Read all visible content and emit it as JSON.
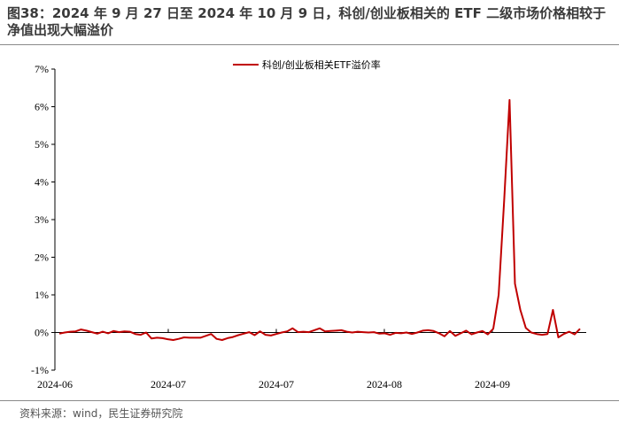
{
  "title": "图38：2024 年 9 月 27 日至 2024 年 10 月 9 日，科创/创业板相关的 ETF 二级市场价格相较于净值出现大幅溢价",
  "source": "资料来源：wind，民生证券研究院",
  "chart_data": {
    "type": "line",
    "title": "",
    "xlabel": "",
    "ylabel": "",
    "ylim": [
      -1,
      7
    ],
    "y_ticks": [
      -1,
      0,
      1,
      2,
      3,
      4,
      5,
      6,
      7
    ],
    "y_tick_labels": [
      "-1%",
      "0%",
      "1%",
      "2%",
      "3%",
      "4%",
      "5%",
      "6%",
      "7%"
    ],
    "x_tick_labels": [
      "2024-06",
      "2024-07",
      "2024-07",
      "2024-08",
      "2024-09"
    ],
    "legend_position": "top-center",
    "grid": false,
    "series": [
      {
        "name": "科创/创业板相关ETF溢价率",
        "color": "#c00000",
        "values": [
          -0.03,
          0.0,
          0.02,
          0.03,
          0.08,
          0.05,
          0.01,
          -0.03,
          0.02,
          -0.02,
          0.04,
          0.01,
          0.03,
          0.02,
          -0.04,
          -0.06,
          0.0,
          -0.16,
          -0.14,
          -0.15,
          -0.18,
          -0.2,
          -0.17,
          -0.13,
          -0.14,
          -0.14,
          -0.14,
          -0.09,
          -0.04,
          -0.17,
          -0.2,
          -0.15,
          -0.12,
          -0.07,
          -0.03,
          0.01,
          -0.07,
          0.03,
          -0.06,
          -0.08,
          -0.04,
          0.0,
          0.03,
          0.11,
          0.01,
          0.02,
          0.01,
          0.06,
          0.11,
          0.03,
          0.04,
          0.05,
          0.06,
          0.02,
          0.0,
          0.02,
          0.01,
          0.0,
          0.01,
          -0.03,
          -0.02,
          -0.06,
          -0.01,
          -0.02,
          0.0,
          -0.04,
          0.0,
          0.05,
          0.06,
          0.04,
          -0.02,
          -0.1,
          0.04,
          -0.09,
          -0.02,
          0.05,
          -0.05,
          0.0,
          0.04,
          -0.05,
          0.1,
          1.0,
          3.5,
          6.18,
          1.3,
          0.6,
          0.12,
          0.0,
          -0.04,
          -0.06,
          -0.04,
          0.6,
          -0.13,
          -0.04,
          0.02,
          -0.05,
          0.1
        ]
      }
    ]
  }
}
